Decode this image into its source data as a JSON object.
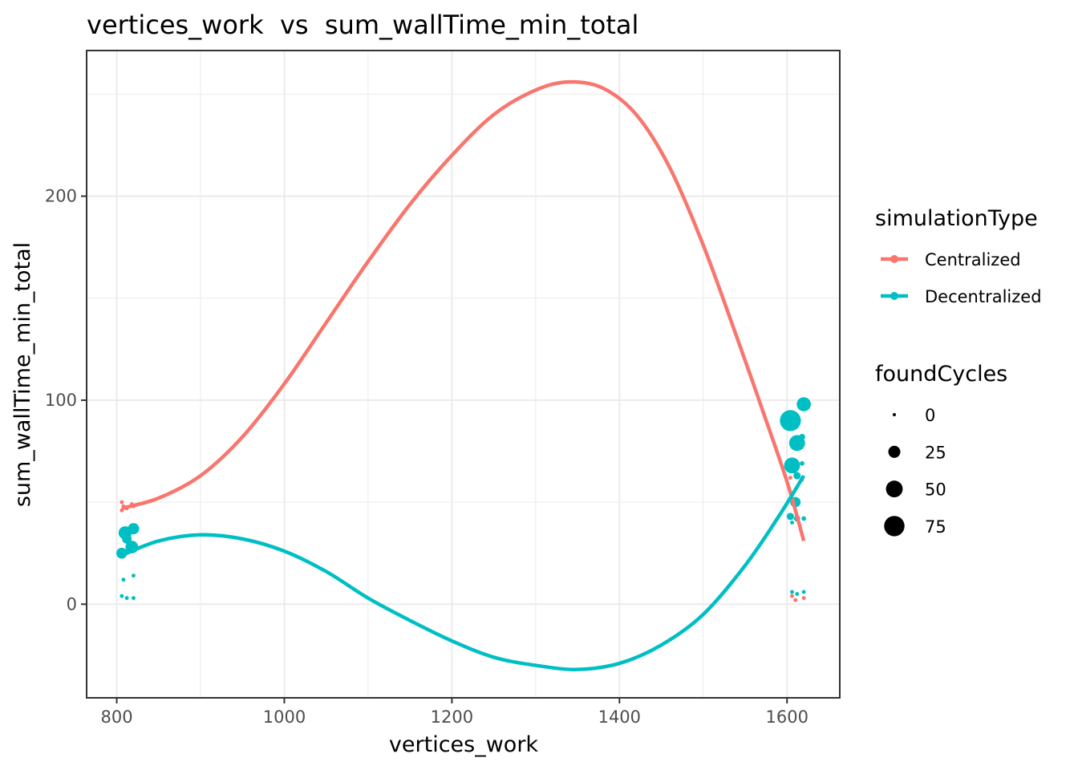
{
  "chart_data": {
    "type": "scatter",
    "title": "vertices_work  vs  sum_wallTime_min_total",
    "xlabel": "vertices_work",
    "ylabel": "sum_wallTime_min_total",
    "xlim": [
      765,
      1662
    ],
    "ylim": [
      -45.5,
      271
    ],
    "x_ticks": [
      800,
      1000,
      1200,
      1400,
      1600
    ],
    "x_tick_labels": [
      "800",
      "1000",
      "1200",
      "1400",
      "1600"
    ],
    "y_ticks": [
      0,
      100,
      200
    ],
    "y_tick_labels": [
      "0",
      "100",
      "200"
    ],
    "grid": true,
    "legend_position": "right",
    "color_legend": {
      "title": "simulationType",
      "entries": [
        {
          "label": "Centralized",
          "color": "#F8766D"
        },
        {
          "label": "Decentralized",
          "color": "#00BFC4"
        }
      ]
    },
    "size_legend": {
      "title": "foundCycles",
      "entries": [
        {
          "label": "0",
          "value": 0
        },
        {
          "label": "25",
          "value": 25
        },
        {
          "label": "50",
          "value": 50
        },
        {
          "label": "75",
          "value": 75
        }
      ]
    },
    "series": [
      {
        "name": "Centralized",
        "color": "#F8766D",
        "points": [
          {
            "x": 806,
            "y": 50,
            "size": 1
          },
          {
            "x": 806,
            "y": 46,
            "size": 1
          },
          {
            "x": 808,
            "y": 48,
            "size": 1
          },
          {
            "x": 812,
            "y": 47,
            "size": 1
          },
          {
            "x": 818,
            "y": 49,
            "size": 1
          },
          {
            "x": 820,
            "y": 48,
            "size": 1
          },
          {
            "x": 1604,
            "y": 62,
            "size": 1
          },
          {
            "x": 1606,
            "y": 4,
            "size": 1
          },
          {
            "x": 1610,
            "y": 2,
            "size": 1
          },
          {
            "x": 1612,
            "y": 63,
            "size": 1
          },
          {
            "x": 1618,
            "y": 61,
            "size": 1
          },
          {
            "x": 1620,
            "y": 3,
            "size": 1
          }
        ],
        "smooth": [
          {
            "x": 806,
            "y": 47
          },
          {
            "x": 850,
            "y": 52
          },
          {
            "x": 900,
            "y": 63
          },
          {
            "x": 950,
            "y": 82
          },
          {
            "x": 1000,
            "y": 108
          },
          {
            "x": 1050,
            "y": 138
          },
          {
            "x": 1100,
            "y": 168
          },
          {
            "x": 1150,
            "y": 196
          },
          {
            "x": 1200,
            "y": 220
          },
          {
            "x": 1250,
            "y": 240
          },
          {
            "x": 1300,
            "y": 252
          },
          {
            "x": 1340,
            "y": 256
          },
          {
            "x": 1380,
            "y": 253
          },
          {
            "x": 1420,
            "y": 240
          },
          {
            "x": 1460,
            "y": 214
          },
          {
            "x": 1500,
            "y": 176
          },
          {
            "x": 1540,
            "y": 131
          },
          {
            "x": 1570,
            "y": 96
          },
          {
            "x": 1600,
            "y": 60
          },
          {
            "x": 1620,
            "y": 31
          }
        ]
      },
      {
        "name": "Decentralized",
        "color": "#00BFC4",
        "points": [
          {
            "x": 806,
            "y": 25,
            "size": 20
          },
          {
            "x": 810,
            "y": 35,
            "size": 30
          },
          {
            "x": 812,
            "y": 32,
            "size": 15
          },
          {
            "x": 818,
            "y": 28,
            "size": 28
          },
          {
            "x": 820,
            "y": 37,
            "size": 22
          },
          {
            "x": 808,
            "y": 12,
            "size": 1
          },
          {
            "x": 820,
            "y": 14,
            "size": 1
          },
          {
            "x": 806,
            "y": 4,
            "size": 1
          },
          {
            "x": 812,
            "y": 3,
            "size": 1
          },
          {
            "x": 820,
            "y": 3,
            "size": 1
          },
          {
            "x": 1604,
            "y": 90,
            "size": 80
          },
          {
            "x": 1612,
            "y": 79,
            "size": 45
          },
          {
            "x": 1620,
            "y": 98,
            "size": 35
          },
          {
            "x": 1606,
            "y": 68,
            "size": 45
          },
          {
            "x": 1618,
            "y": 82,
            "size": 5
          },
          {
            "x": 1612,
            "y": 63,
            "size": 8
          },
          {
            "x": 1610,
            "y": 50,
            "size": 18
          },
          {
            "x": 1604,
            "y": 43,
            "size": 8
          },
          {
            "x": 1612,
            "y": 42,
            "size": 5
          },
          {
            "x": 1620,
            "y": 42,
            "size": 2
          },
          {
            "x": 1606,
            "y": 40,
            "size": 1
          },
          {
            "x": 1618,
            "y": 69,
            "size": 2
          },
          {
            "x": 1606,
            "y": 6,
            "size": 1
          },
          {
            "x": 1612,
            "y": 5,
            "size": 1
          },
          {
            "x": 1620,
            "y": 6,
            "size": 1
          }
        ],
        "smooth": [
          {
            "x": 806,
            "y": 24
          },
          {
            "x": 850,
            "y": 31
          },
          {
            "x": 900,
            "y": 34
          },
          {
            "x": 950,
            "y": 32
          },
          {
            "x": 1000,
            "y": 26
          },
          {
            "x": 1050,
            "y": 16
          },
          {
            "x": 1100,
            "y": 3
          },
          {
            "x": 1150,
            "y": -8
          },
          {
            "x": 1200,
            "y": -18
          },
          {
            "x": 1250,
            "y": -26
          },
          {
            "x": 1300,
            "y": -30
          },
          {
            "x": 1350,
            "y": -32
          },
          {
            "x": 1400,
            "y": -29
          },
          {
            "x": 1450,
            "y": -20
          },
          {
            "x": 1500,
            "y": -5
          },
          {
            "x": 1550,
            "y": 19
          },
          {
            "x": 1590,
            "y": 43
          },
          {
            "x": 1620,
            "y": 63
          }
        ]
      }
    ]
  }
}
